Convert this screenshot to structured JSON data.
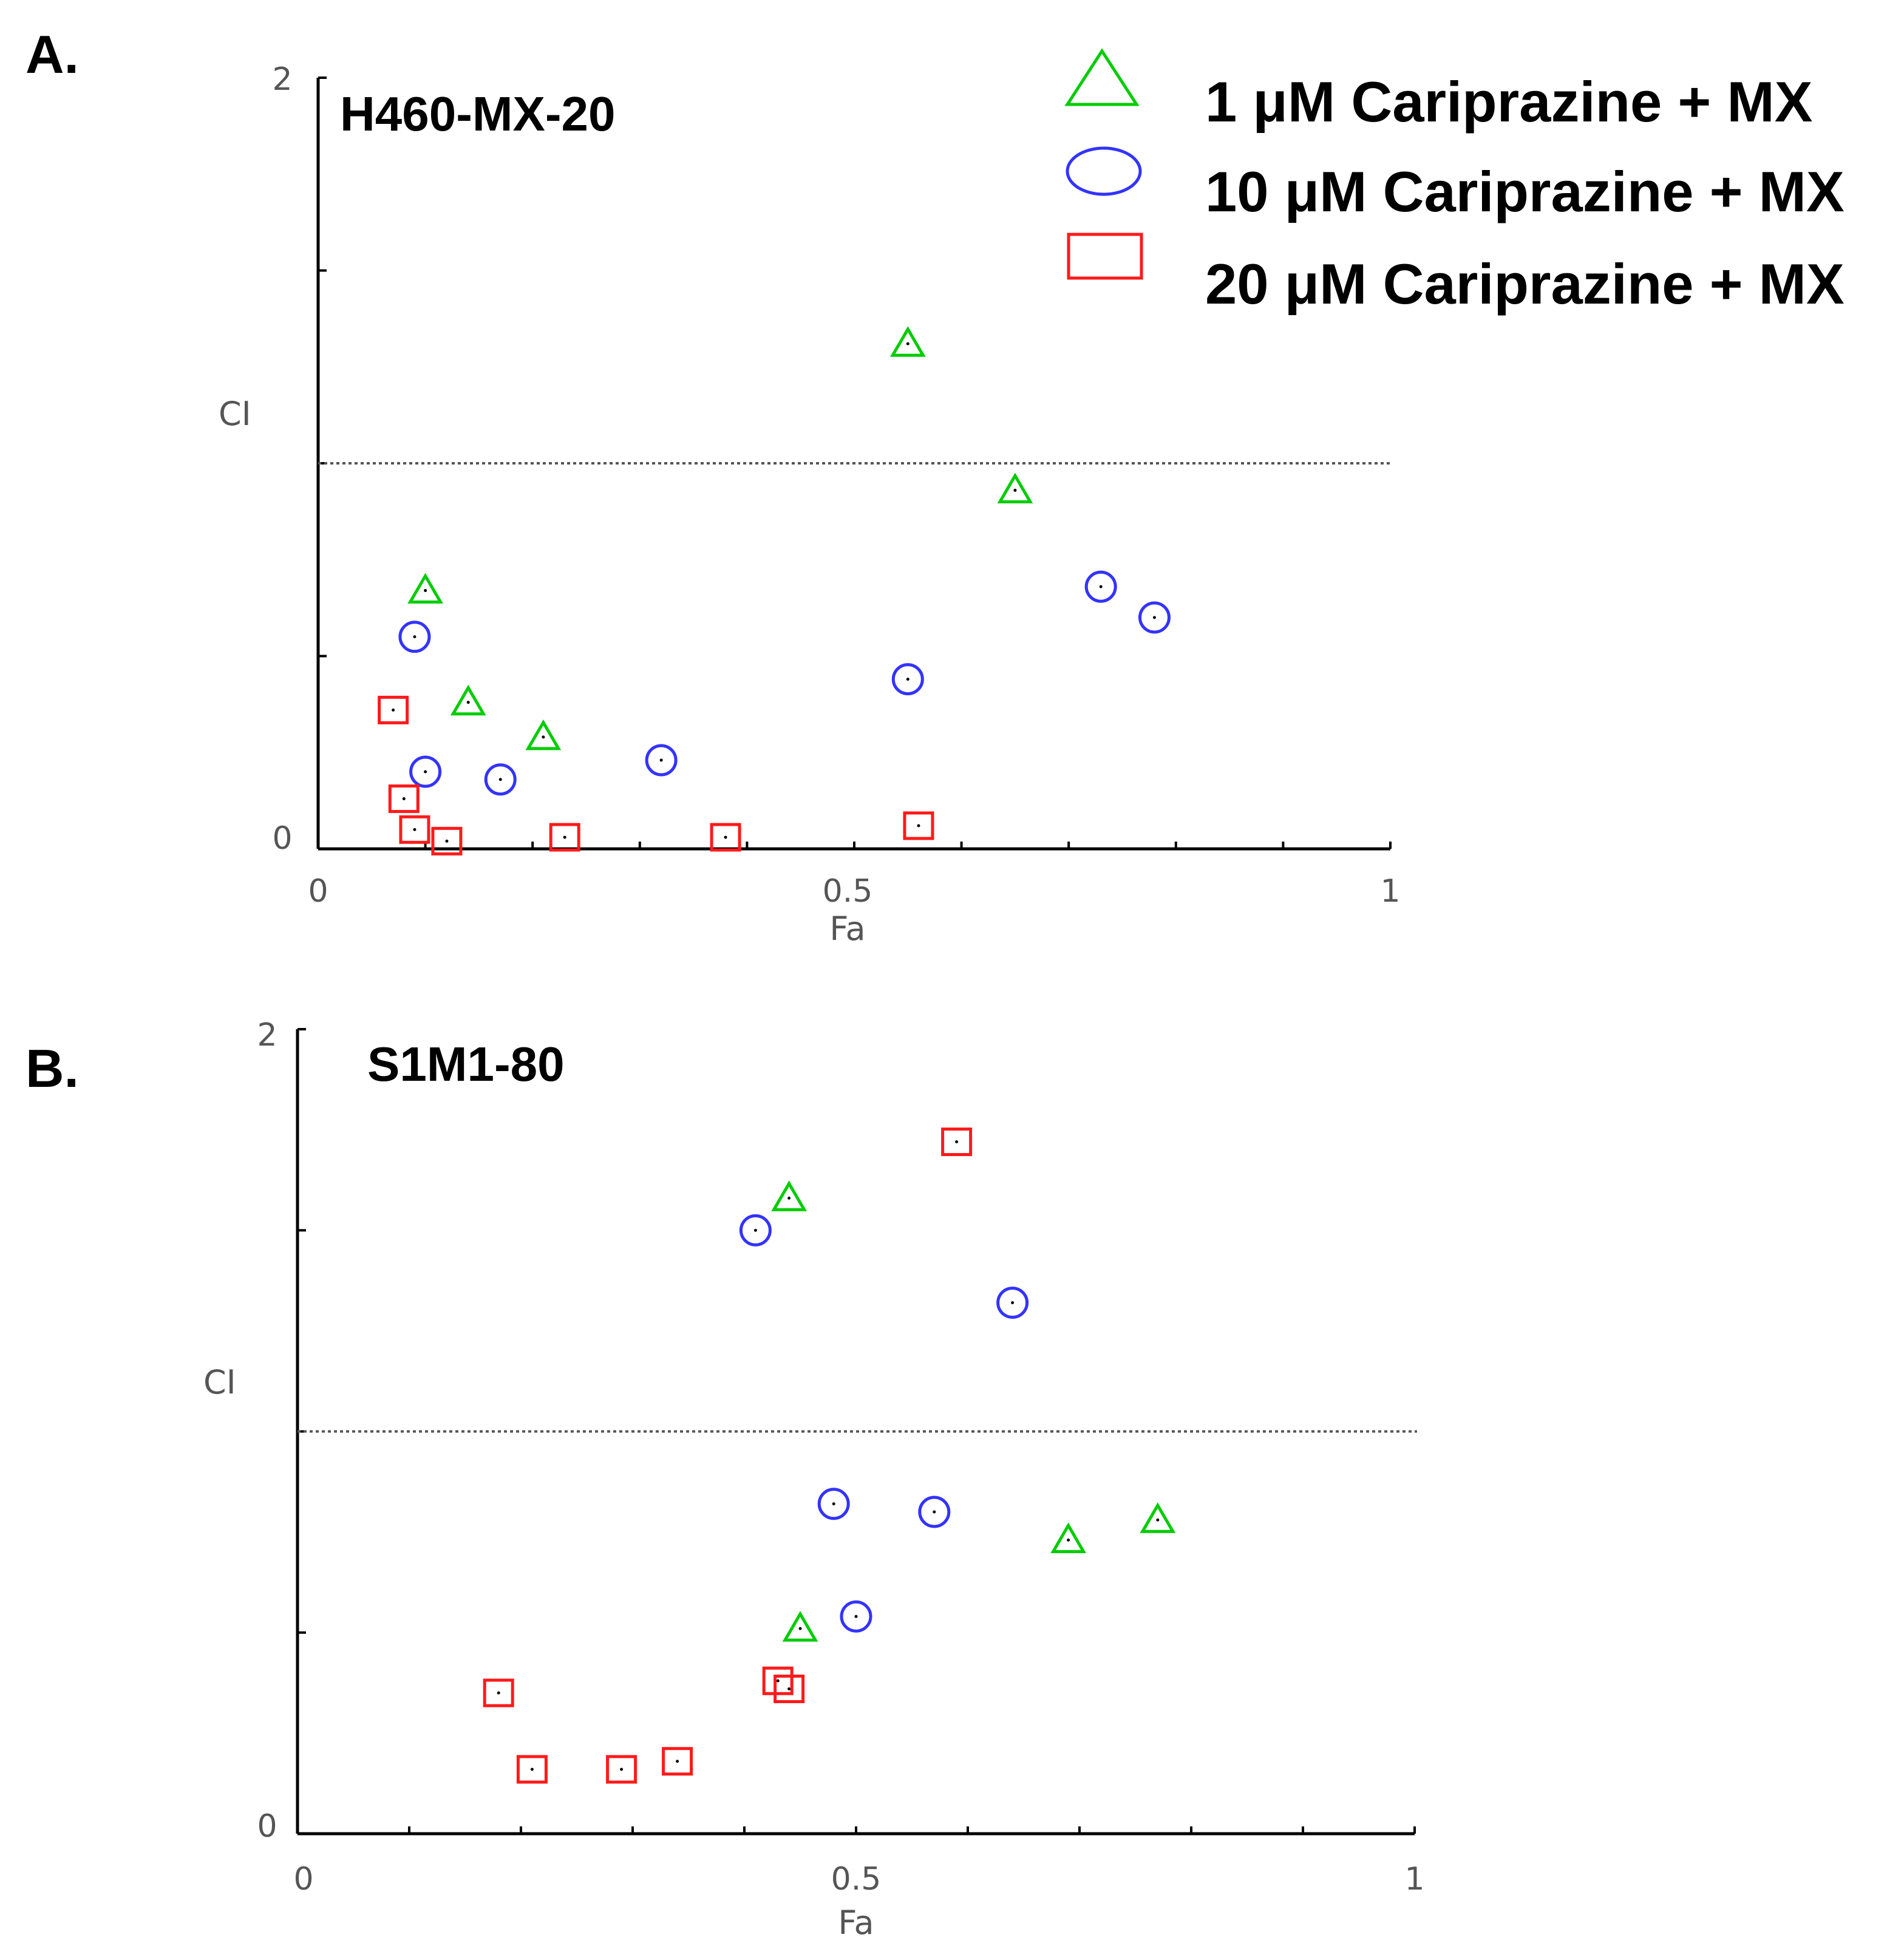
{
  "colors": {
    "green": "#00cc00",
    "blue": "#3333ff",
    "red": "#ff1a1a"
  },
  "legend": [
    {
      "label": "1 μM Cariprazine + MX",
      "marker": "triangle",
      "color": "#00cc00"
    },
    {
      "label": "10 μM Cariprazine + MX",
      "marker": "circle",
      "color": "#3333ff"
    },
    {
      "label": "20 μM Cariprazine + MX",
      "marker": "square",
      "color": "#ff1a1a"
    }
  ],
  "chart_data": [
    {
      "panel": "A.",
      "title": "H460-MX-20",
      "type": "scatter",
      "xlabel": "Fa",
      "ylabel": "CI",
      "xlim": [
        0,
        1
      ],
      "ylim": [
        0,
        2
      ],
      "x_tick_labels": [
        "0",
        "0.5",
        "1"
      ],
      "y_tick_labels": [
        "0",
        "2"
      ],
      "reference_line_y": 1.0,
      "series": [
        {
          "name": "1 μM Cariprazine + MX",
          "marker": "triangle",
          "color": "#00cc00",
          "points": [
            [
              0.1,
              0.67
            ],
            [
              0.14,
              0.38
            ],
            [
              0.21,
              0.29
            ],
            [
              0.55,
              1.31
            ],
            [
              0.65,
              0.93
            ]
          ]
        },
        {
          "name": "10 μM Cariprazine + MX",
          "marker": "circle",
          "color": "#3333ff",
          "points": [
            [
              0.09,
              0.55
            ],
            [
              0.1,
              0.2
            ],
            [
              0.17,
              0.18
            ],
            [
              0.32,
              0.23
            ],
            [
              0.55,
              0.44
            ],
            [
              0.73,
              0.68
            ],
            [
              0.78,
              0.6
            ]
          ]
        },
        {
          "name": "20 μM Cariprazine + MX",
          "marker": "square",
          "color": "#ff1a1a",
          "points": [
            [
              0.07,
              0.36
            ],
            [
              0.08,
              0.13
            ],
            [
              0.09,
              0.05
            ],
            [
              0.12,
              0.02
            ],
            [
              0.23,
              0.03
            ],
            [
              0.38,
              0.03
            ],
            [
              0.56,
              0.06
            ]
          ]
        }
      ]
    },
    {
      "panel": "B.",
      "title": "S1M1-80",
      "type": "scatter",
      "xlabel": "Fa",
      "ylabel": "CI",
      "xlim": [
        0,
        1
      ],
      "ylim": [
        0,
        2
      ],
      "x_tick_labels": [
        "0",
        "0.5",
        "1"
      ],
      "y_tick_labels": [
        "0",
        "2"
      ],
      "reference_line_y": 1.0,
      "series": [
        {
          "name": "1 μM Cariprazine + MX",
          "marker": "triangle",
          "color": "#00cc00",
          "points": [
            [
              0.44,
              1.58
            ],
            [
              0.45,
              0.51
            ],
            [
              0.69,
              0.73
            ],
            [
              0.77,
              0.78
            ]
          ]
        },
        {
          "name": "10 μM Cariprazine + MX",
          "marker": "circle",
          "color": "#3333ff",
          "points": [
            [
              0.41,
              1.5
            ],
            [
              0.64,
              1.32
            ],
            [
              0.48,
              0.82
            ],
            [
              0.57,
              0.8
            ],
            [
              0.5,
              0.54
            ]
          ]
        },
        {
          "name": "20 μM Cariprazine + MX",
          "marker": "square",
          "color": "#ff1a1a",
          "points": [
            [
              0.59,
              1.72
            ],
            [
              0.18,
              0.35
            ],
            [
              0.21,
              0.16
            ],
            [
              0.29,
              0.16
            ],
            [
              0.34,
              0.18
            ],
            [
              0.43,
              0.38
            ],
            [
              0.44,
              0.36
            ]
          ]
        }
      ]
    }
  ]
}
